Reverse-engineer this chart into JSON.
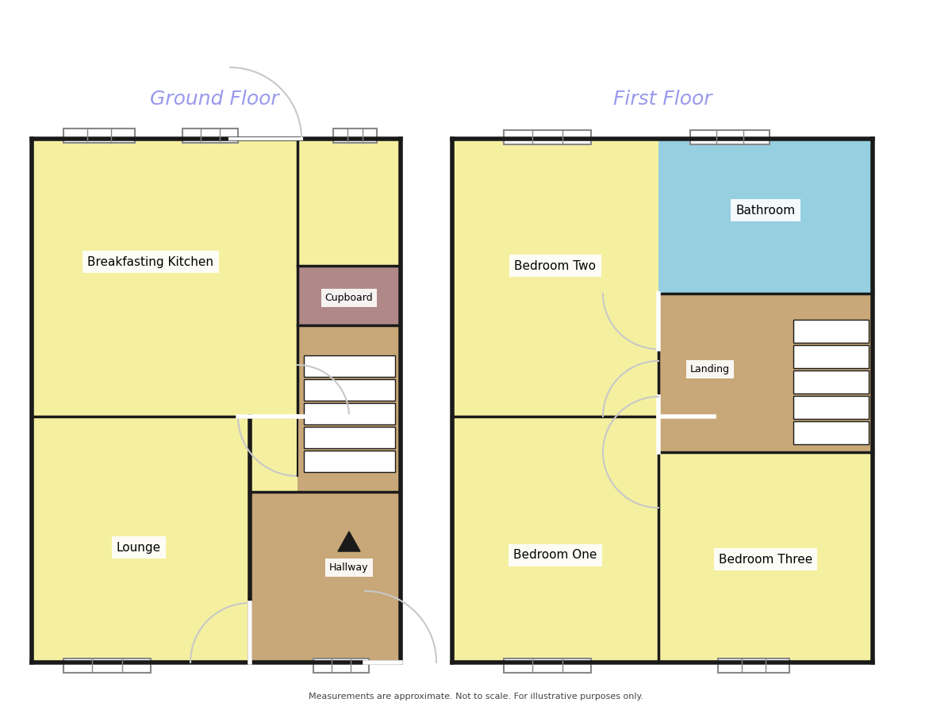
{
  "title_ground": "Ground Floor",
  "title_first": "First Floor",
  "title_color": "#9999ee",
  "title_fontsize": 16,
  "bg_color": "white",
  "wall_color": "#1a1a1a",
  "wall_lw": 4.0,
  "inner_lw": 2.5,
  "room_yellow": "#f5f0a0",
  "room_blue": "#96cfe0",
  "room_brown": "#c8a878",
  "room_mauve": "#b08888",
  "door_color": "#c8c8c8",
  "window_color": "#b0b8c8",
  "footnote": "Measurements are approximate. Not to scale. For illustrative purposes only.",
  "label_fontsize": 9,
  "title_italic": true
}
